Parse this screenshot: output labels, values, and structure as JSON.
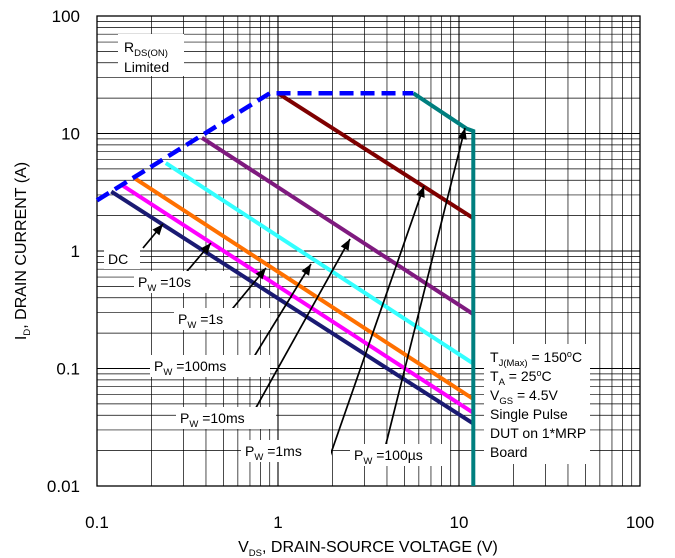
{
  "chart_data": {
    "type": "line",
    "title": "",
    "x_axis": {
      "scale": "log",
      "range": [
        0.1,
        100
      ],
      "ticks": [
        0.1,
        1,
        10,
        100
      ],
      "tick_labels": [
        "0.1",
        "1",
        "10",
        "100"
      ],
      "label": {
        "prefix": "V",
        "sub": "DS",
        "suffix": ", DRAIN-SOURCE VOLTAGE (V)"
      }
    },
    "y_axis": {
      "scale": "log",
      "range": [
        0.01,
        100
      ],
      "ticks": [
        0.01,
        0.1,
        1,
        10,
        100
      ],
      "tick_labels": [
        "0.01",
        "0.1",
        "1",
        "10",
        "100"
      ],
      "label": {
        "prefix": "I",
        "sub": "D",
        "suffix": ", DRAIN CURRENT (A)"
      }
    },
    "grid": true,
    "series": [
      {
        "name": "DC",
        "color": "#1a1a72",
        "x": [
          0.12,
          12
        ],
        "y": [
          3.2,
          0.034
        ]
      },
      {
        "name": "10s",
        "color": "#ff00ff",
        "x": [
          0.135,
          12
        ],
        "y": [
          3.7,
          0.042
        ]
      },
      {
        "name": "1s",
        "color": "#ff7000",
        "x": [
          0.16,
          12
        ],
        "y": [
          4.2,
          0.055
        ]
      },
      {
        "name": "100ms",
        "color": "#33ffff",
        "x": [
          0.24,
          12
        ],
        "y": [
          5.6,
          0.11
        ]
      },
      {
        "name": "10ms",
        "color": "#7f1a7f",
        "x": [
          0.38,
          12
        ],
        "y": [
          9.2,
          0.29
        ]
      },
      {
        "name": "1ms",
        "color": "#7f0000",
        "x": [
          1.0,
          12
        ],
        "y": [
          22,
          1.9
        ]
      },
      {
        "name": "100us",
        "color": "#007f7f",
        "x": [
          5.6,
          11,
          12,
          12
        ],
        "y": [
          22,
          11,
          10.5,
          0.01
        ]
      },
      {
        "name": "RDS(ON) Limited",
        "color": "#0000ff",
        "dashed": true,
        "x": [
          0.1,
          0.9,
          5.6
        ],
        "y": [
          2.7,
          22,
          22
        ]
      }
    ],
    "annotations": {
      "rds_box": {
        "line1_main": "R",
        "line1_sub": "DS(ON)",
        "line2": "Limited"
      },
      "dc": "DC",
      "pulse_labels": [
        {
          "id": "pw-10s",
          "prefix": "P",
          "sub": "W",
          "value": " =10s"
        },
        {
          "id": "pw-1s",
          "prefix": "P",
          "sub": "W",
          "value": " =1s"
        },
        {
          "id": "pw-100ms",
          "prefix": "P",
          "sub": "W",
          "value": " =100ms"
        },
        {
          "id": "pw-10ms",
          "prefix": "P",
          "sub": "W",
          "value": " =10ms"
        },
        {
          "id": "pw-1ms",
          "prefix": "P",
          "sub": "W",
          "value": " =1ms"
        },
        {
          "id": "pw-100us",
          "prefix": "P",
          "sub": "W",
          "value": " =100µs"
        }
      ],
      "conditions": {
        "tj_main": "T",
        "tj_sub": "J(Max)",
        "tj_value": " = 150",
        "tj_sup": "o",
        "tj_unit": "C",
        "ta_main": "T",
        "ta_sub": "A",
        "ta_value": " = 25",
        "ta_sup": "o",
        "ta_unit": "C",
        "vgs_main": "V",
        "vgs_sub": "GS",
        "vgs_value": " = 4.5V",
        "line4": "Single Pulse",
        "line5": "DUT on 1*MRP",
        "line6": "Board"
      }
    }
  }
}
